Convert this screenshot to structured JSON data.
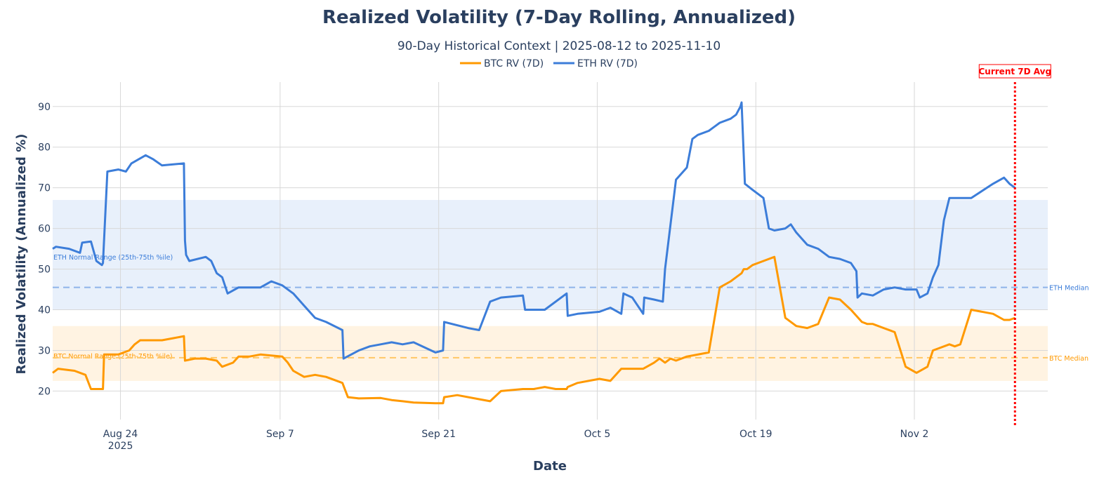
{
  "chart_data": {
    "type": "line",
    "title": "Realized Volatility (7-Day Rolling, Annualized)",
    "subtitle": "90-Day Historical Context | 2025-08-12 to 2025-11-10",
    "xlabel": "Date",
    "ylabel": "Realized Volatility (Annualized %)",
    "ylim": [
      13,
      96
    ],
    "yticks": [
      20,
      30,
      40,
      50,
      60,
      70,
      80,
      90
    ],
    "xlim_days": [
      0,
      91
    ],
    "xticks": [
      {
        "day": 6.2,
        "label": "Aug 24",
        "sub": "2025"
      },
      {
        "day": 20.8,
        "label": "Sep 7",
        "sub": ""
      },
      {
        "day": 35.3,
        "label": "Sep 21",
        "sub": ""
      },
      {
        "day": 49.8,
        "label": "Oct 5",
        "sub": ""
      },
      {
        "day": 64.3,
        "label": "Oct 19",
        "sub": ""
      },
      {
        "day": 78.8,
        "label": "Nov 2",
        "sub": ""
      }
    ],
    "grid": true,
    "legend_position": "top-center",
    "colors": {
      "btc": "#ff9900",
      "eth": "#3c7dd9",
      "marker": "#ff0000"
    },
    "series": [
      {
        "name": "ETH RV (7D)",
        "key": "eth",
        "x": [
          0,
          0.3,
          1.5,
          2.5,
          2.7,
          3.5,
          4.0,
          4.5,
          4.6,
          5.0,
          6.0,
          6.7,
          7.2,
          8.5,
          9.2,
          10.0,
          12.0,
          12.1,
          12.2,
          12.5,
          14.0,
          14.5,
          15.0,
          15.5,
          16.0,
          17.0,
          19.0,
          20.0,
          21.0,
          22.0,
          23.0,
          24.0,
          25.0,
          26.5,
          26.6,
          28.0,
          29.0,
          30.0,
          31.0,
          32.0,
          33.0,
          35.0,
          35.7,
          35.8,
          38.0,
          39.0,
          40.0,
          41.0,
          43.0,
          43.2,
          45.0,
          47.0,
          47.1,
          48.0,
          50.0,
          51.0,
          52.0,
          52.2,
          53.0,
          54.0,
          54.1,
          55.0,
          55.8,
          56.0,
          57.0,
          58.0,
          58.5,
          59.0,
          60.0,
          61.0,
          62.0,
          62.5,
          62.9,
          63.0,
          63.3,
          64.0,
          65.0,
          65.5,
          66.0,
          67.0,
          67.5,
          68.0,
          69.0,
          70.0,
          71.0,
          72.0,
          73.0,
          73.5,
          73.6,
          74.0,
          75.0,
          76.0,
          77.0,
          78.0,
          79.0,
          79.3,
          80.0,
          80.5,
          81.0,
          81.5,
          82.0,
          83.0,
          84.0,
          86.0,
          87.0,
          87.5,
          88.0
        ],
        "values": [
          55,
          55.5,
          55,
          54,
          56.5,
          56.8,
          52,
          51,
          51.5,
          74,
          74.5,
          74,
          76,
          78,
          77,
          75.5,
          76,
          57,
          53.5,
          52,
          53,
          52,
          49,
          48,
          44,
          45.5,
          45.5,
          47,
          46,
          44,
          41,
          38,
          37,
          35,
          28,
          30,
          31,
          31.5,
          32,
          31.5,
          32,
          29.5,
          30,
          37,
          35.5,
          35,
          42,
          43,
          43.5,
          40,
          40,
          44,
          38.5,
          39,
          39.5,
          40.5,
          39,
          44,
          43,
          39,
          43,
          42.5,
          42,
          50,
          72,
          75,
          82,
          83,
          84,
          86,
          87,
          88,
          90,
          91,
          71,
          69.5,
          67.5,
          60,
          59.5,
          60,
          61,
          59,
          56,
          55,
          53,
          52.5,
          51.5,
          49.5,
          43,
          44,
          43.5,
          45,
          45.5,
          45,
          45,
          43,
          44,
          48,
          51,
          62,
          67.5,
          67.5,
          67.5,
          71,
          72.5,
          71,
          70
        ]
      },
      {
        "name": "BTC RV (7D)",
        "key": "btc",
        "x": [
          0,
          0.5,
          2.0,
          3.0,
          3.5,
          3.6,
          4.0,
          4.6,
          4.7,
          6.0,
          7.0,
          7.5,
          8.0,
          9.0,
          10.0,
          11.0,
          12.0,
          12.1,
          13.0,
          14.0,
          15.0,
          15.5,
          16.5,
          17.0,
          18.0,
          19.0,
          21.0,
          21.5,
          22.0,
          23.0,
          24.0,
          25.0,
          26.5,
          27.0,
          28.0,
          30.0,
          31.0,
          32.0,
          33.0,
          35.0,
          35.7,
          35.8,
          37.0,
          39.0,
          40.0,
          41.0,
          43.0,
          44.0,
          45.0,
          46.0,
          47.0,
          47.1,
          48.0,
          50.0,
          51.0,
          52.0,
          54.0,
          55.0,
          55.5,
          56.0,
          56.5,
          57.0,
          58.0,
          60.0,
          61.0,
          62.0,
          62.5,
          63.0,
          63.2,
          63.5,
          64.0,
          65.0,
          66.0,
          67.0,
          68.0,
          69.0,
          70.0,
          71.0,
          72.0,
          73.0,
          74.0,
          74.5,
          75.0,
          76.0,
          77.0,
          78.0,
          79.0,
          80.0,
          80.5,
          81.0,
          82.0,
          82.5,
          83.0,
          84.0,
          86.0,
          87.0,
          87.5,
          88.0
        ],
        "values": [
          24.5,
          25.5,
          25,
          24,
          20.5,
          20.5,
          20.5,
          20.5,
          29,
          29,
          30,
          31.5,
          32.5,
          32.5,
          32.5,
          33,
          33.5,
          27.5,
          28,
          28,
          27.5,
          26,
          27,
          28.5,
          28.5,
          29,
          28.5,
          27,
          25,
          23.5,
          24,
          23.5,
          22,
          18.5,
          18.2,
          18.3,
          17.8,
          17.5,
          17.2,
          17,
          17,
          18.5,
          19,
          18,
          17.5,
          20,
          20.5,
          20.5,
          21,
          20.5,
          20.5,
          21,
          22,
          23,
          22.5,
          25.5,
          25.5,
          27,
          28,
          27,
          28,
          27.5,
          28.5,
          29.5,
          45.5,
          47,
          48,
          49,
          50,
          50,
          51,
          52,
          53,
          38,
          36,
          35.5,
          36.5,
          43,
          42.5,
          40,
          37,
          36.5,
          36.5,
          35.5,
          34.5,
          26,
          24.5,
          26,
          30,
          30.5,
          31.5,
          31,
          31.5,
          40,
          39,
          37.5,
          37.5,
          38
        ]
      }
    ],
    "bands": [
      {
        "name": "ETH Normal Range (25th-75th %ile)",
        "key": "eth",
        "y0": 40,
        "y1": 67,
        "fill": "#e8f0fb"
      },
      {
        "name": "BTC Normal Range (25th-75th %ile)",
        "key": "btc",
        "y0": 22.5,
        "y1": 36,
        "fill": "#fff3e2"
      }
    ],
    "medians": [
      {
        "name": "ETH Median",
        "key": "eth",
        "y": 45.5,
        "color": "#8fb3ea"
      },
      {
        "name": "BTC Median",
        "key": "btc",
        "y": 28.2,
        "color": "#ffc766"
      }
    ],
    "vline": {
      "label": "Current 7D Avg",
      "day": 88.0
    }
  }
}
